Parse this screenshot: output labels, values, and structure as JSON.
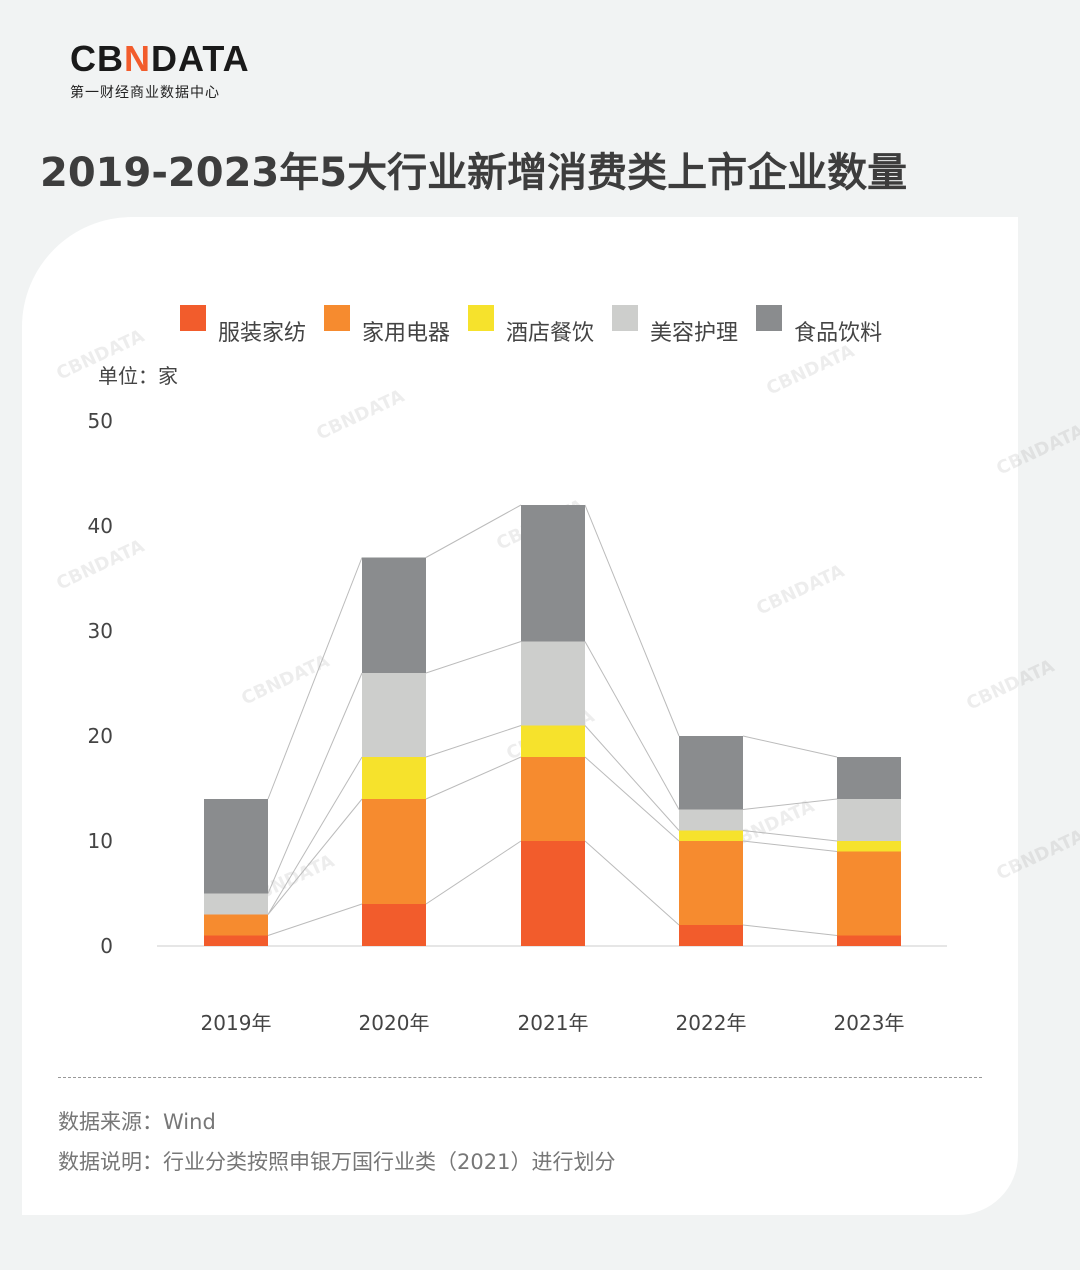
{
  "logo": {
    "main_pre": "CB",
    "main_n": "N",
    "main_post": "DATA",
    "sub": "第一财经商业数据中心"
  },
  "title": "2019-2023年5大行业新增消费类上市企业数量",
  "unit": "单位：家",
  "footer": {
    "source": "数据来源：Wind",
    "note": "数据说明：行业分类按照申银万国行业类（2021）进行划分"
  },
  "watermark": "CBNDATA",
  "chart_data": {
    "type": "bar",
    "stacked": true,
    "title": "2019-2023年5大行业新增消费类上市企业数量",
    "ylabel": "单位：家",
    "ylim": [
      0,
      50
    ],
    "yticks": [
      0,
      10,
      20,
      30,
      40,
      50
    ],
    "categories": [
      "2019年",
      "2020年",
      "2021年",
      "2022年",
      "2023年"
    ],
    "series": [
      {
        "name": "服装家纺",
        "color": "#f25c2c",
        "values": [
          1,
          4,
          10,
          2,
          1
        ]
      },
      {
        "name": "家用电器",
        "color": "#f68b2f",
        "values": [
          2,
          10,
          8,
          8,
          8
        ]
      },
      {
        "name": "酒店餐饮",
        "color": "#f6e22c",
        "values": [
          0,
          4,
          3,
          1,
          1
        ]
      },
      {
        "name": "美容护理",
        "color": "#cdcecc",
        "values": [
          2,
          8,
          8,
          2,
          4
        ]
      },
      {
        "name": "食品饮料",
        "color": "#8a8c8e",
        "values": [
          9,
          11,
          13,
          7,
          4
        ]
      }
    ],
    "legend_position": "top",
    "grid": false
  }
}
